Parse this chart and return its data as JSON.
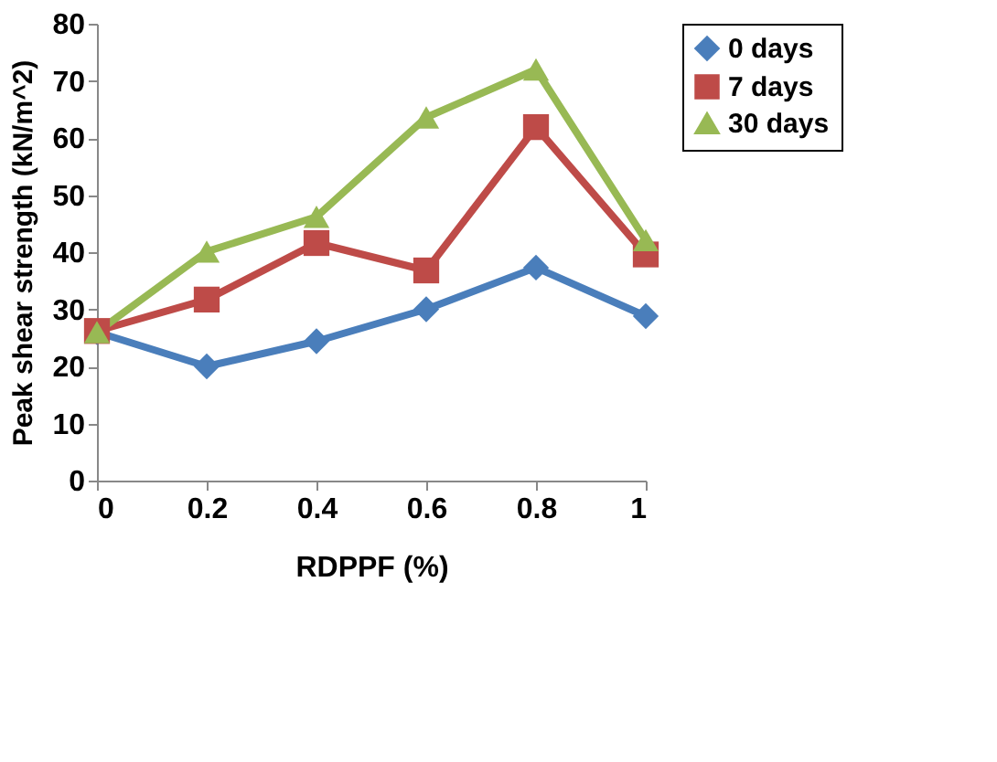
{
  "chart_data": {
    "type": "line",
    "xlabel": "RDPPF (%)",
    "ylabel": "Peak shear strength (kN/m^2)",
    "x": [
      0,
      0.2,
      0.4,
      0.6,
      0.8,
      1
    ],
    "xlim": [
      0,
      1
    ],
    "xticks": [
      0,
      0.2,
      0.4,
      0.6,
      0.8,
      1
    ],
    "ylim": [
      0,
      80
    ],
    "yticks": [
      0,
      10,
      20,
      30,
      40,
      50,
      60,
      70,
      80
    ],
    "grid": false,
    "legend": "top right",
    "line_style": "solid",
    "series": [
      {
        "name": "0 days",
        "color": "#4a7ebb",
        "marker": "diamond",
        "values": [
          26,
          20,
          24.4,
          30,
          37.3,
          28.8
        ]
      },
      {
        "name": "7 days",
        "color": "#be4b48",
        "marker": "square",
        "values": [
          26.2,
          31.7,
          41.6,
          36.8,
          61.9,
          39.6
        ]
      },
      {
        "name": "30 days",
        "color": "#98b954",
        "marker": "triangle",
        "values": [
          26,
          40.1,
          46.2,
          63.6,
          72,
          42.1
        ]
      }
    ]
  }
}
